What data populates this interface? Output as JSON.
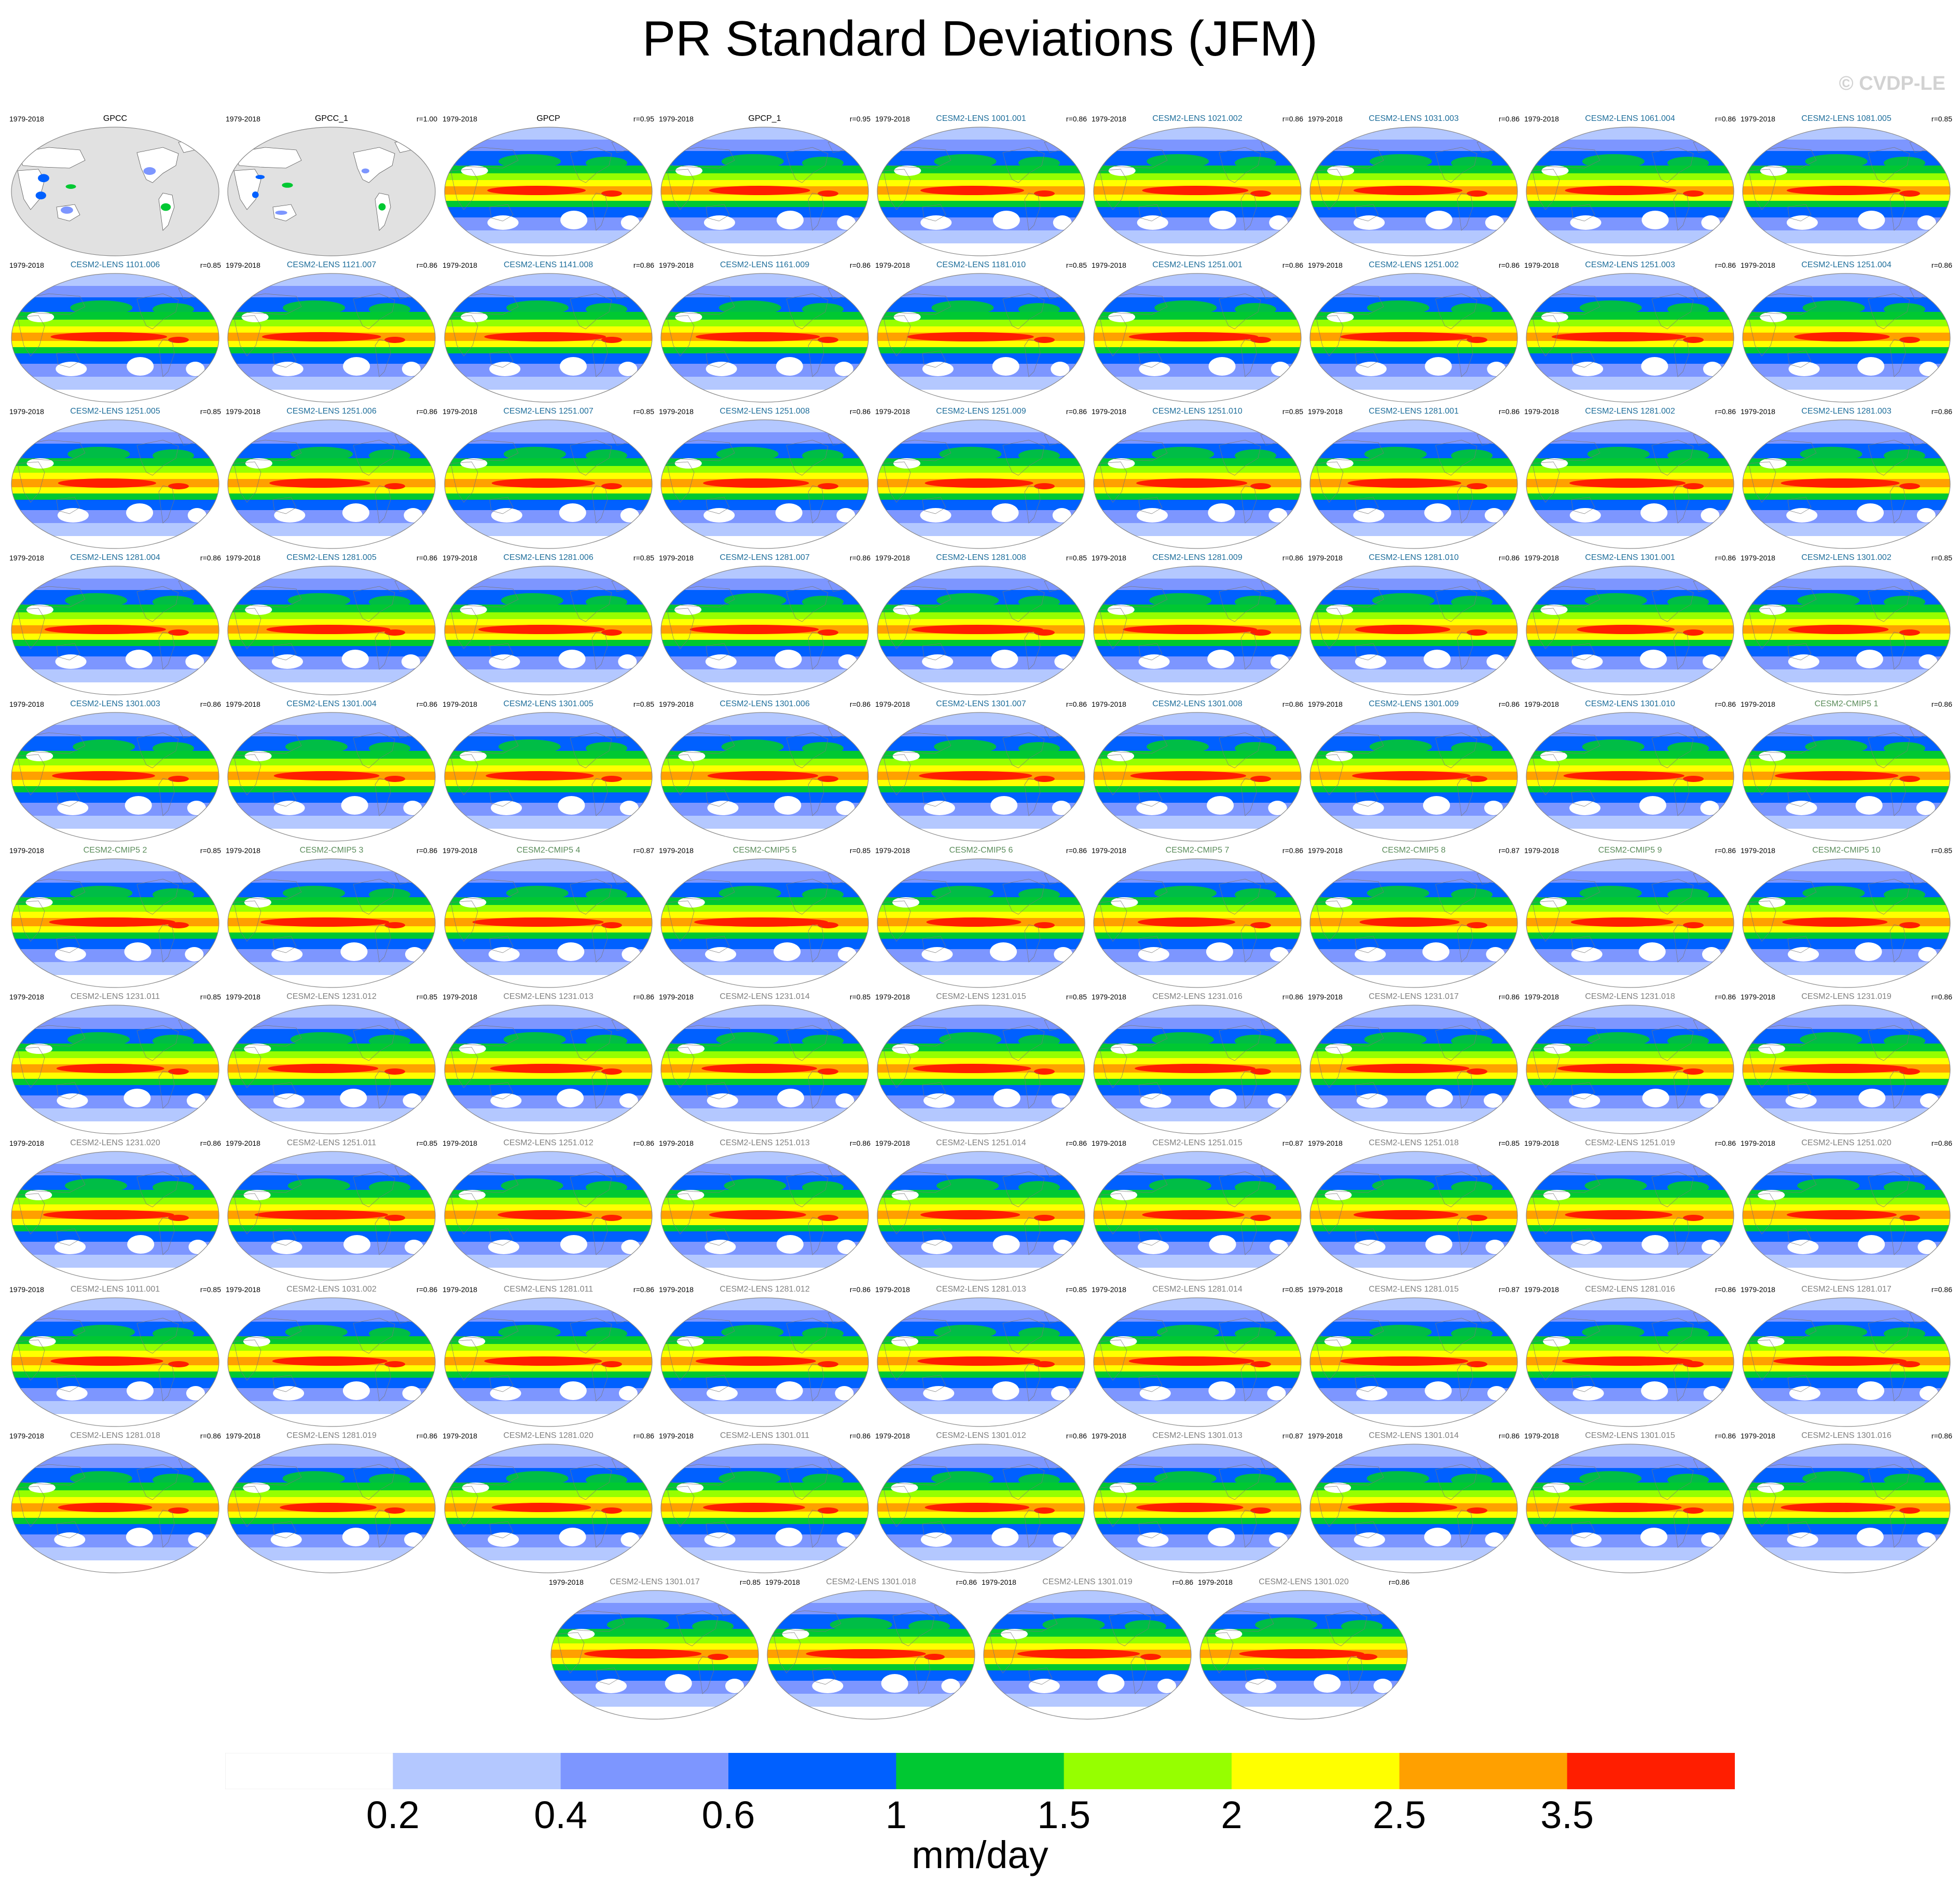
{
  "title": "PR Standard Deviations (JFM)",
  "watermark": "© CVDP-LE",
  "chart_data": {
    "type": "heatmap",
    "description_type": "small-multiples global maps",
    "panels": [
      {
        "name": "GPCC",
        "period": "1979-2018",
        "r": "",
        "group": "obs_land"
      },
      {
        "name": "GPCC_1",
        "period": "1979-2018",
        "r": "r=1.00",
        "group": "obs_land"
      },
      {
        "name": "GPCP",
        "period": "1979-2018",
        "r": "r=0.95",
        "group": "obs"
      },
      {
        "name": "GPCP_1",
        "period": "1979-2018",
        "r": "r=0.95",
        "group": "obs"
      },
      {
        "name": "CESM2-LENS 1001.001",
        "period": "1979-2018",
        "r": "r=0.86",
        "group": "lens"
      },
      {
        "name": "CESM2-LENS 1021.002",
        "period": "1979-2018",
        "r": "r=0.86",
        "group": "lens"
      },
      {
        "name": "CESM2-LENS 1031.003",
        "period": "1979-2018",
        "r": "r=0.86",
        "group": "lens"
      },
      {
        "name": "CESM2-LENS 1061.004",
        "period": "1979-2018",
        "r": "r=0.86",
        "group": "lens"
      },
      {
        "name": "CESM2-LENS 1081.005",
        "period": "1979-2018",
        "r": "r=0.85",
        "group": "lens"
      },
      {
        "name": "CESM2-LENS 1101.006",
        "period": "1979-2018",
        "r": "r=0.85",
        "group": "lens"
      },
      {
        "name": "CESM2-LENS 1121.007",
        "period": "1979-2018",
        "r": "r=0.86",
        "group": "lens"
      },
      {
        "name": "CESM2-LENS 1141.008",
        "period": "1979-2018",
        "r": "r=0.86",
        "group": "lens"
      },
      {
        "name": "CESM2-LENS 1161.009",
        "period": "1979-2018",
        "r": "r=0.86",
        "group": "lens"
      },
      {
        "name": "CESM2-LENS 1181.010",
        "period": "1979-2018",
        "r": "r=0.85",
        "group": "lens"
      },
      {
        "name": "CESM2-LENS 1251.001",
        "period": "1979-2018",
        "r": "r=0.86",
        "group": "lens"
      },
      {
        "name": "CESM2-LENS 1251.002",
        "period": "1979-2018",
        "r": "r=0.86",
        "group": "lens"
      },
      {
        "name": "CESM2-LENS 1251.003",
        "period": "1979-2018",
        "r": "r=0.86",
        "group": "lens"
      },
      {
        "name": "CESM2-LENS 1251.004",
        "period": "1979-2018",
        "r": "r=0.86",
        "group": "lens"
      },
      {
        "name": "CESM2-LENS 1251.005",
        "period": "1979-2018",
        "r": "r=0.85",
        "group": "lens"
      },
      {
        "name": "CESM2-LENS 1251.006",
        "period": "1979-2018",
        "r": "r=0.86",
        "group": "lens"
      },
      {
        "name": "CESM2-LENS 1251.007",
        "period": "1979-2018",
        "r": "r=0.85",
        "group": "lens"
      },
      {
        "name": "CESM2-LENS 1251.008",
        "period": "1979-2018",
        "r": "r=0.86",
        "group": "lens"
      },
      {
        "name": "CESM2-LENS 1251.009",
        "period": "1979-2018",
        "r": "r=0.86",
        "group": "lens"
      },
      {
        "name": "CESM2-LENS 1251.010",
        "period": "1979-2018",
        "r": "r=0.85",
        "group": "lens"
      },
      {
        "name": "CESM2-LENS 1281.001",
        "period": "1979-2018",
        "r": "r=0.86",
        "group": "lens"
      },
      {
        "name": "CESM2-LENS 1281.002",
        "period": "1979-2018",
        "r": "r=0.86",
        "group": "lens"
      },
      {
        "name": "CESM2-LENS 1281.003",
        "period": "1979-2018",
        "r": "r=0.86",
        "group": "lens"
      },
      {
        "name": "CESM2-LENS 1281.004",
        "period": "1979-2018",
        "r": "r=0.86",
        "group": "lens"
      },
      {
        "name": "CESM2-LENS 1281.005",
        "period": "1979-2018",
        "r": "r=0.86",
        "group": "lens"
      },
      {
        "name": "CESM2-LENS 1281.006",
        "period": "1979-2018",
        "r": "r=0.85",
        "group": "lens"
      },
      {
        "name": "CESM2-LENS 1281.007",
        "period": "1979-2018",
        "r": "r=0.86",
        "group": "lens"
      },
      {
        "name": "CESM2-LENS 1281.008",
        "period": "1979-2018",
        "r": "r=0.85",
        "group": "lens"
      },
      {
        "name": "CESM2-LENS 1281.009",
        "period": "1979-2018",
        "r": "r=0.86",
        "group": "lens"
      },
      {
        "name": "CESM2-LENS 1281.010",
        "period": "1979-2018",
        "r": "r=0.86",
        "group": "lens"
      },
      {
        "name": "CESM2-LENS 1301.001",
        "period": "1979-2018",
        "r": "r=0.86",
        "group": "lens"
      },
      {
        "name": "CESM2-LENS 1301.002",
        "period": "1979-2018",
        "r": "r=0.85",
        "group": "lens"
      },
      {
        "name": "CESM2-LENS 1301.003",
        "period": "1979-2018",
        "r": "r=0.86",
        "group": "lens"
      },
      {
        "name": "CESM2-LENS 1301.004",
        "period": "1979-2018",
        "r": "r=0.86",
        "group": "lens"
      },
      {
        "name": "CESM2-LENS 1301.005",
        "period": "1979-2018",
        "r": "r=0.85",
        "group": "lens"
      },
      {
        "name": "CESM2-LENS 1301.006",
        "period": "1979-2018",
        "r": "r=0.86",
        "group": "lens"
      },
      {
        "name": "CESM2-LENS 1301.007",
        "period": "1979-2018",
        "r": "r=0.86",
        "group": "lens"
      },
      {
        "name": "CESM2-LENS 1301.008",
        "period": "1979-2018",
        "r": "r=0.86",
        "group": "lens"
      },
      {
        "name": "CESM2-LENS 1301.009",
        "period": "1979-2018",
        "r": "r=0.86",
        "group": "lens"
      },
      {
        "name": "CESM2-LENS 1301.010",
        "period": "1979-2018",
        "r": "r=0.86",
        "group": "lens"
      },
      {
        "name": "CESM2-CMIP5 1",
        "period": "1979-2018",
        "r": "r=0.86",
        "group": "cmip5"
      },
      {
        "name": "CESM2-CMIP5 2",
        "period": "1979-2018",
        "r": "r=0.85",
        "group": "cmip5"
      },
      {
        "name": "CESM2-CMIP5 3",
        "period": "1979-2018",
        "r": "r=0.86",
        "group": "cmip5"
      },
      {
        "name": "CESM2-CMIP5 4",
        "period": "1979-2018",
        "r": "r=0.87",
        "group": "cmip5"
      },
      {
        "name": "CESM2-CMIP5 5",
        "period": "1979-2018",
        "r": "r=0.85",
        "group": "cmip5"
      },
      {
        "name": "CESM2-CMIP5 6",
        "period": "1979-2018",
        "r": "r=0.86",
        "group": "cmip5"
      },
      {
        "name": "CESM2-CMIP5 7",
        "period": "1979-2018",
        "r": "r=0.86",
        "group": "cmip5"
      },
      {
        "name": "CESM2-CMIP5 8",
        "period": "1979-2018",
        "r": "r=0.87",
        "group": "cmip5"
      },
      {
        "name": "CESM2-CMIP5 9",
        "period": "1979-2018",
        "r": "r=0.86",
        "group": "cmip5"
      },
      {
        "name": "CESM2-CMIP5 10",
        "period": "1979-2018",
        "r": "r=0.85",
        "group": "cmip5"
      },
      {
        "name": "CESM2-LENS 1231.011",
        "period": "1979-2018",
        "r": "r=0.85",
        "group": "smbb"
      },
      {
        "name": "CESM2-LENS 1231.012",
        "period": "1979-2018",
        "r": "r=0.85",
        "group": "smbb"
      },
      {
        "name": "CESM2-LENS 1231.013",
        "period": "1979-2018",
        "r": "r=0.86",
        "group": "smbb"
      },
      {
        "name": "CESM2-LENS 1231.014",
        "period": "1979-2018",
        "r": "r=0.85",
        "group": "smbb"
      },
      {
        "name": "CESM2-LENS 1231.015",
        "period": "1979-2018",
        "r": "r=0.85",
        "group": "smbb"
      },
      {
        "name": "CESM2-LENS 1231.016",
        "period": "1979-2018",
        "r": "r=0.86",
        "group": "smbb"
      },
      {
        "name": "CESM2-LENS 1231.017",
        "period": "1979-2018",
        "r": "r=0.86",
        "group": "smbb"
      },
      {
        "name": "CESM2-LENS 1231.018",
        "period": "1979-2018",
        "r": "r=0.86",
        "group": "smbb"
      },
      {
        "name": "CESM2-LENS 1231.019",
        "period": "1979-2018",
        "r": "r=0.86",
        "group": "smbb"
      },
      {
        "name": "CESM2-LENS 1231.020",
        "period": "1979-2018",
        "r": "r=0.86",
        "group": "smbb"
      },
      {
        "name": "CESM2-LENS 1251.011",
        "period": "1979-2018",
        "r": "r=0.85",
        "group": "smbb"
      },
      {
        "name": "CESM2-LENS 1251.012",
        "period": "1979-2018",
        "r": "r=0.86",
        "group": "smbb"
      },
      {
        "name": "CESM2-LENS 1251.013",
        "period": "1979-2018",
        "r": "r=0.86",
        "group": "smbb"
      },
      {
        "name": "CESM2-LENS 1251.014",
        "period": "1979-2018",
        "r": "r=0.86",
        "group": "smbb"
      },
      {
        "name": "CESM2-LENS 1251.015",
        "period": "1979-2018",
        "r": "r=0.87",
        "group": "smbb"
      },
      {
        "name": "CESM2-LENS 1251.018",
        "period": "1979-2018",
        "r": "r=0.85",
        "group": "smbb"
      },
      {
        "name": "CESM2-LENS 1251.019",
        "period": "1979-2018",
        "r": "r=0.86",
        "group": "smbb"
      },
      {
        "name": "CESM2-LENS 1251.020",
        "period": "1979-2018",
        "r": "r=0.86",
        "group": "smbb"
      },
      {
        "name": "CESM2-LENS 1011.001",
        "period": "1979-2018",
        "r": "r=0.85",
        "group": "smbb"
      },
      {
        "name": "CESM2-LENS 1031.002",
        "period": "1979-2018",
        "r": "r=0.86",
        "group": "smbb"
      },
      {
        "name": "CESM2-LENS 1281.011",
        "period": "1979-2018",
        "r": "r=0.86",
        "group": "smbb"
      },
      {
        "name": "CESM2-LENS 1281.012",
        "period": "1979-2018",
        "r": "r=0.86",
        "group": "smbb"
      },
      {
        "name": "CESM2-LENS 1281.013",
        "period": "1979-2018",
        "r": "r=0.85",
        "group": "smbb"
      },
      {
        "name": "CESM2-LENS 1281.014",
        "period": "1979-2018",
        "r": "r=0.85",
        "group": "smbb"
      },
      {
        "name": "CESM2-LENS 1281.015",
        "period": "1979-2018",
        "r": "r=0.87",
        "group": "smbb"
      },
      {
        "name": "CESM2-LENS 1281.016",
        "period": "1979-2018",
        "r": "r=0.86",
        "group": "smbb"
      },
      {
        "name": "CESM2-LENS 1281.017",
        "period": "1979-2018",
        "r": "r=0.86",
        "group": "smbb"
      },
      {
        "name": "CESM2-LENS 1281.018",
        "period": "1979-2018",
        "r": "r=0.86",
        "group": "smbb"
      },
      {
        "name": "CESM2-LENS 1281.019",
        "period": "1979-2018",
        "r": "r=0.86",
        "group": "smbb"
      },
      {
        "name": "CESM2-LENS 1281.020",
        "period": "1979-2018",
        "r": "r=0.86",
        "group": "smbb"
      },
      {
        "name": "CESM2-LENS 1301.011",
        "period": "1979-2018",
        "r": "r=0.86",
        "group": "smbb"
      },
      {
        "name": "CESM2-LENS 1301.012",
        "period": "1979-2018",
        "r": "r=0.86",
        "group": "smbb"
      },
      {
        "name": "CESM2-LENS 1301.013",
        "period": "1979-2018",
        "r": "r=0.87",
        "group": "smbb"
      },
      {
        "name": "CESM2-LENS 1301.014",
        "period": "1979-2018",
        "r": "r=0.86",
        "group": "smbb"
      },
      {
        "name": "CESM2-LENS 1301.015",
        "period": "1979-2018",
        "r": "r=0.86",
        "group": "smbb"
      },
      {
        "name": "CESM2-LENS 1301.016",
        "period": "1979-2018",
        "r": "r=0.86",
        "group": "smbb"
      },
      {
        "name": "CESM2-LENS 1301.017",
        "period": "1979-2018",
        "r": "r=0.85",
        "group": "smbb"
      },
      {
        "name": "CESM2-LENS 1301.018",
        "period": "1979-2018",
        "r": "r=0.86",
        "group": "smbb"
      },
      {
        "name": "CESM2-LENS 1301.019",
        "period": "1979-2018",
        "r": "r=0.86",
        "group": "smbb"
      },
      {
        "name": "CESM2-LENS 1301.020",
        "period": "1979-2018",
        "r": "r=0.86",
        "group": "smbb"
      }
    ],
    "colorbar": {
      "levels": [
        0.2,
        0.4,
        0.6,
        1,
        1.5,
        2,
        2.5,
        3.5
      ],
      "tick_labels": [
        "0.2",
        "0.4",
        "0.6",
        "1",
        "1.5",
        "2",
        "2.5",
        "3.5"
      ],
      "colors": [
        "#ffffff",
        "#b4c8ff",
        "#7d96ff",
        "#0060ff",
        "#00c832",
        "#96ff00",
        "#ffff00",
        "#ffa000",
        "#ff1e00"
      ],
      "units": "mm/day"
    },
    "group_title_colors": {
      "obs_land": "#000000",
      "obs": "#000000",
      "lens": "#1e6e9b",
      "cmip5": "#5a8c5a",
      "smbb": "#808080"
    },
    "land_color": "#e1e1e1"
  }
}
